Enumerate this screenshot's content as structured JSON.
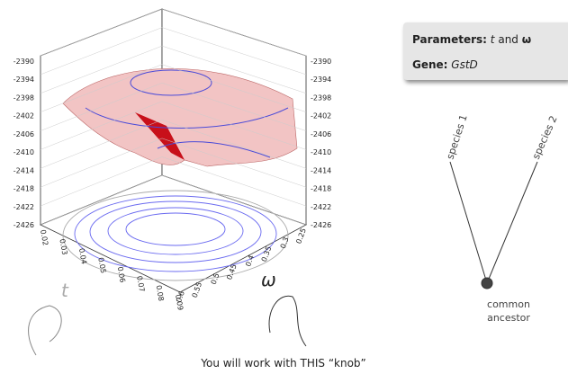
{
  "plot": {
    "z_ticks": [
      -2390,
      -2394,
      -2398,
      -2402,
      -2406,
      -2410,
      -2414,
      -2418,
      -2422,
      -2426
    ],
    "t_ticks": [
      0.02,
      0.03,
      0.04,
      0.05,
      0.06,
      0.07,
      0.08,
      0.09
    ],
    "omega_ticks": [
      0.25,
      0.3,
      0.35,
      0.4,
      0.45,
      0.5,
      0.55,
      0.6
    ],
    "t_label": "t",
    "omega_label": "ω"
  },
  "info_box": {
    "parameters_label": "Parameters:",
    "param_t": "t",
    "conjunction": "and",
    "param_omega": "ω",
    "gene_label": "Gene:",
    "gene_value": "GstD"
  },
  "tree": {
    "species_1": "species 1",
    "species_2": "species 2",
    "root_line_1": "common",
    "root_line_2": "ancestor"
  },
  "caption": "You will work with THIS “knob”"
}
